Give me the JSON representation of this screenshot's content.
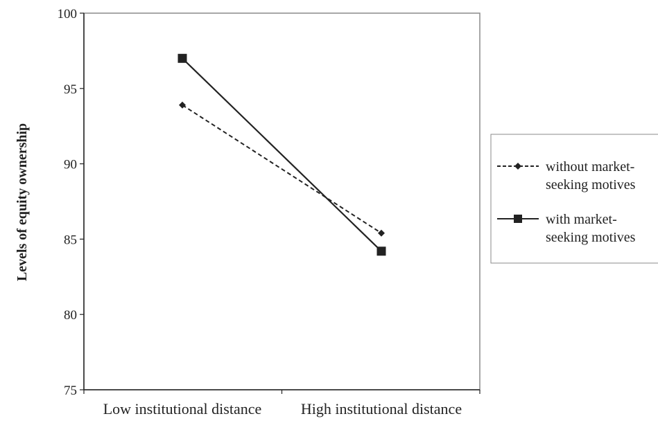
{
  "chart_data": {
    "type": "line",
    "title": "",
    "xlabel": "",
    "ylabel": "Levels of equity ownership",
    "categories": [
      "Low institutional distance",
      "High institutional distance"
    ],
    "ylim": [
      75,
      100
    ],
    "yticks": [
      "75",
      "80",
      "85",
      "90",
      "95",
      "100"
    ],
    "grid": false,
    "legend_position": "right",
    "series": [
      {
        "name_lines": [
          "without market-",
          "seeking motives"
        ],
        "values": [
          93.9,
          85.4
        ],
        "line_style": "dashed",
        "marker": "diamond",
        "color": "#222222"
      },
      {
        "name_lines": [
          "with market-",
          "seeking motives"
        ],
        "values": [
          97.0,
          84.2
        ],
        "line_style": "solid",
        "marker": "square",
        "color": "#222222"
      }
    ]
  }
}
